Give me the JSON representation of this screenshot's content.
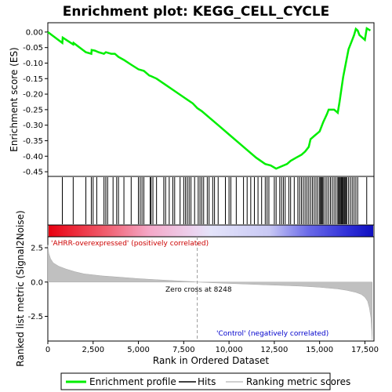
{
  "colors": {
    "es_line": "#00ee00",
    "hit": "#000000",
    "metric_fill": "#c0c0c0",
    "zero_line": "#999999",
    "pos_text": "#cc0000",
    "neg_text": "#0000cc"
  },
  "chart_data": {
    "type": "line",
    "title": "Enrichment plot: KEGG_CELL_CYCLE",
    "xlabel": "Rank in Ordered Dataset",
    "es_panel": {
      "ylabel": "Enrichment score (ES)",
      "ylim": [
        -0.465,
        0.03
      ],
      "yticks": [
        "0.00",
        "-0.05",
        "-0.10",
        "-0.15",
        "-0.20",
        "-0.25",
        "-0.30",
        "-0.35",
        "-0.40",
        "-0.45"
      ],
      "ytick_values": [
        0.0,
        -0.05,
        -0.1,
        -0.15,
        -0.2,
        -0.25,
        -0.3,
        -0.35,
        -0.4,
        -0.45
      ],
      "series": [
        {
          "name": "Enrichment profile",
          "x": [
            0,
            800,
            820,
            1400,
            1420,
            2100,
            2400,
            2420,
            2600,
            2800,
            3100,
            3200,
            3500,
            3700,
            3900,
            4200,
            4600,
            5000,
            5300,
            5600,
            5700,
            6000,
            6500,
            7000,
            7500,
            8000,
            8248,
            8500,
            9000,
            9500,
            10000,
            10500,
            11000,
            11500,
            12000,
            12300,
            12600,
            12800,
            13200,
            13400,
            13700,
            14000,
            14200,
            14400,
            14500,
            14700,
            14900,
            15000,
            15200,
            15400,
            15500,
            15800,
            15900,
            16000,
            16100,
            16200,
            16300,
            16400,
            16500,
            16600,
            16700,
            16800,
            16900,
            17000,
            17100,
            17200,
            17300,
            17500,
            17600,
            17800
          ],
          "y": [
            0.0,
            -0.035,
            -0.018,
            -0.04,
            -0.035,
            -0.065,
            -0.07,
            -0.058,
            -0.06,
            -0.065,
            -0.07,
            -0.065,
            -0.07,
            -0.07,
            -0.08,
            -0.09,
            -0.105,
            -0.12,
            -0.125,
            -0.14,
            -0.142,
            -0.15,
            -0.17,
            -0.19,
            -0.21,
            -0.23,
            -0.245,
            -0.255,
            -0.28,
            -0.305,
            -0.33,
            -0.355,
            -0.38,
            -0.405,
            -0.425,
            -0.43,
            -0.44,
            -0.435,
            -0.425,
            -0.415,
            -0.405,
            -0.395,
            -0.385,
            -0.37,
            -0.345,
            -0.335,
            -0.325,
            -0.32,
            -0.29,
            -0.265,
            -0.25,
            -0.25,
            -0.255,
            -0.26,
            -0.225,
            -0.185,
            -0.145,
            -0.115,
            -0.085,
            -0.055,
            -0.04,
            -0.025,
            -0.01,
            0.01,
            0.005,
            -0.01,
            -0.015,
            -0.025,
            0.012,
            0.005
          ]
        }
      ]
    },
    "hits": [
      800,
      1400,
      2100,
      2400,
      2500,
      2700,
      3100,
      3200,
      3300,
      3600,
      3800,
      3900,
      4200,
      4600,
      5000,
      5100,
      5200,
      5300,
      5650,
      5700,
      5800,
      6000,
      6400,
      6500,
      6700,
      6900,
      7000,
      7300,
      7500,
      7600,
      7700,
      7800,
      7900,
      8100,
      8300,
      8400,
      8500,
      8600,
      8800,
      8900,
      9100,
      9200,
      9400,
      9800,
      10000,
      10100,
      10400,
      10800,
      11000,
      11200,
      11400,
      11600,
      11800,
      12000,
      12100,
      12200,
      12500,
      12600,
      12800,
      12900,
      13000,
      13100,
      13300,
      13400,
      13600,
      13800,
      13900,
      14000,
      14100,
      14200,
      14300,
      14400,
      14500,
      14600,
      14700,
      14800,
      14900,
      15000,
      15050,
      15100,
      15150,
      15200,
      15300,
      15400,
      15500,
      15600,
      15700,
      15800,
      15900,
      16000,
      16050,
      16100,
      16150,
      16200,
      16250,
      16300,
      16350,
      16400,
      16450,
      16500,
      16600,
      16700,
      16800,
      16900,
      17000,
      17100,
      17600
    ],
    "metric_panel": {
      "ylabel": "Ranked list metric (Signal2Noise)",
      "ylim": [
        -4.3,
        3.3
      ],
      "yticks": [
        "2.5",
        "0.0",
        "-2.5"
      ],
      "ytick_values": [
        2.5,
        0.0,
        -2.5
      ],
      "x": [
        0,
        50,
        150,
        300,
        600,
        1000,
        1500,
        2000,
        3000,
        4000,
        5000,
        6000,
        7000,
        8000,
        8248,
        9000,
        10000,
        11000,
        12000,
        13000,
        14000,
        15000,
        16000,
        16500,
        17000,
        17300,
        17500,
        17650,
        17750,
        17830,
        17880,
        17900
      ],
      "values": [
        2.7,
        2.1,
        1.7,
        1.4,
        1.15,
        0.95,
        0.75,
        0.6,
        0.45,
        0.35,
        0.25,
        0.17,
        0.1,
        0.03,
        0.0,
        -0.05,
        -0.1,
        -0.15,
        -0.2,
        -0.25,
        -0.3,
        -0.38,
        -0.5,
        -0.6,
        -0.75,
        -0.9,
        -1.1,
        -1.4,
        -1.9,
        -2.6,
        -3.6,
        -4.2
      ]
    },
    "xticks": [
      "0",
      "2,500",
      "5,000",
      "7,500",
      "10,000",
      "12,500",
      "15,000",
      "17,500"
    ],
    "xtick_values": [
      0,
      2500,
      5000,
      7500,
      10000,
      12500,
      15000,
      17500
    ],
    "xlim": [
      0,
      18000
    ],
    "annotations": {
      "positive": "'AHRR-overexpressed' (positively correlated)",
      "negative": "'Control' (negatively correlated)",
      "zero_cross": "Zero cross at 8248",
      "zero_cross_value": 8248
    },
    "legend": {
      "placement": "bottom",
      "items": [
        "Enrichment profile",
        "Hits",
        "Ranking metric scores"
      ]
    }
  }
}
